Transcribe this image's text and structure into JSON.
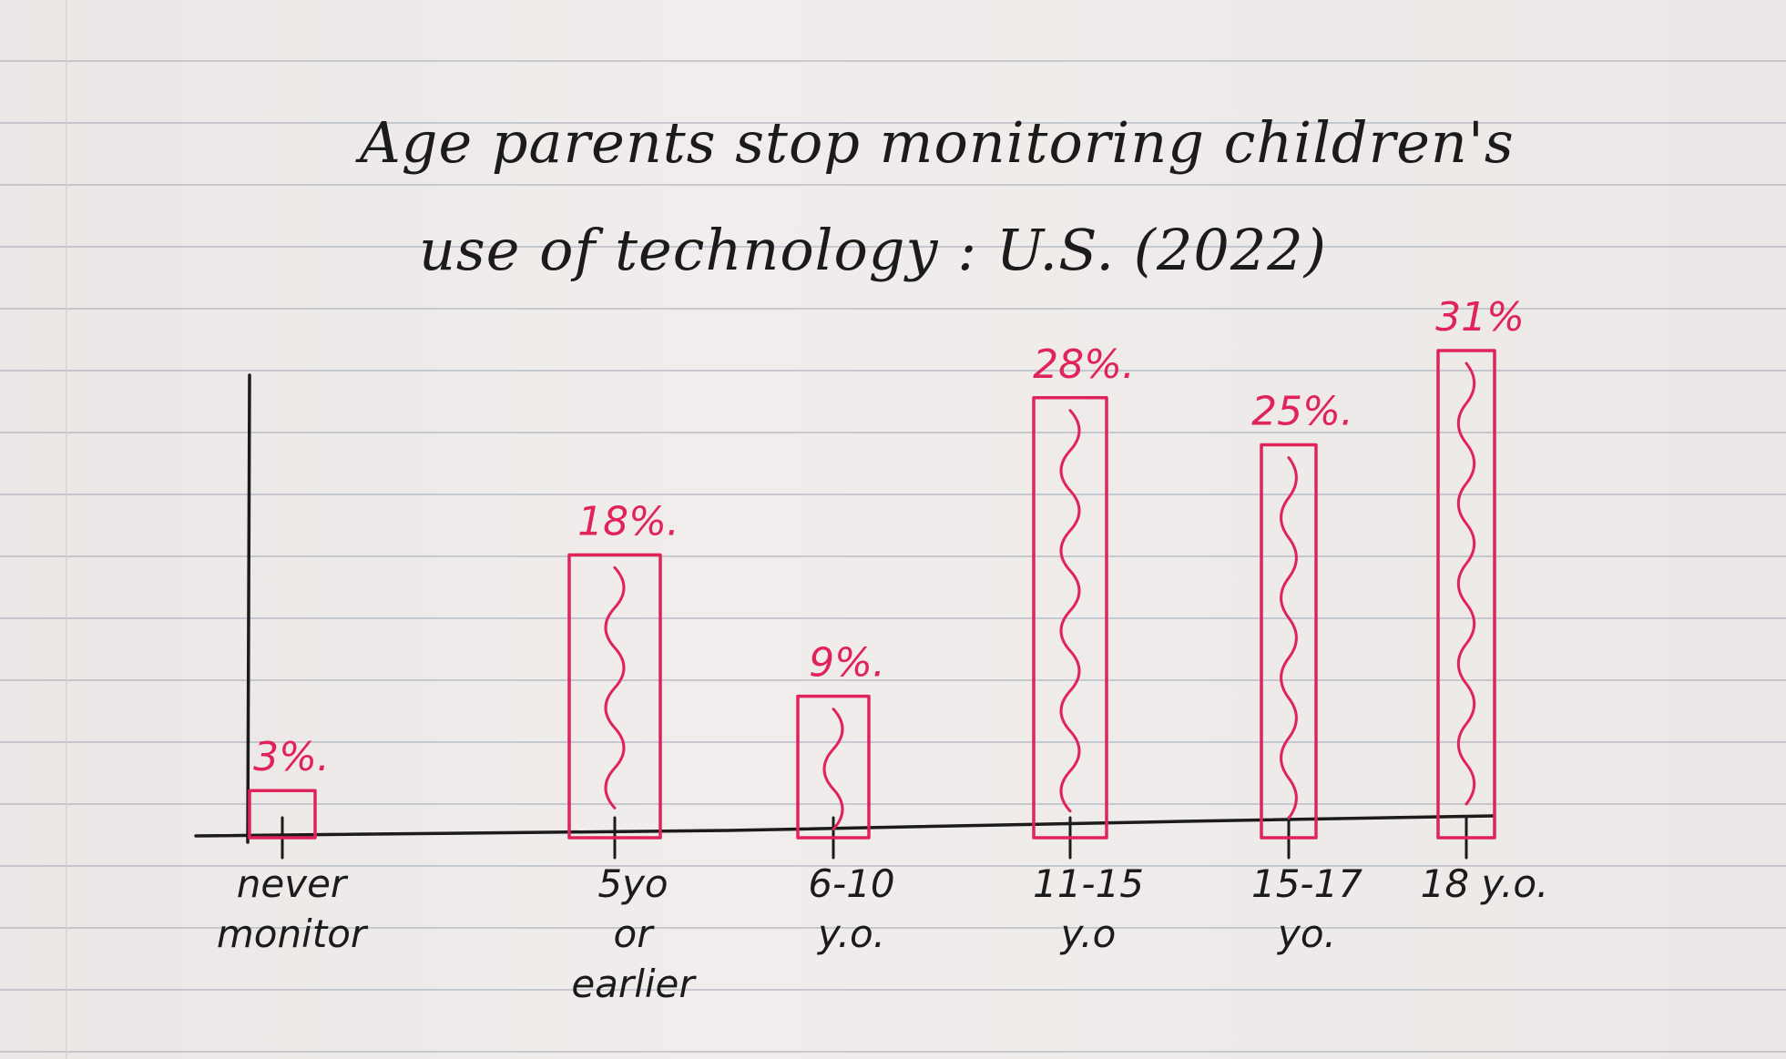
{
  "title_lines": [
    "Age parents stop monitoring children's",
    "use of technology : U.S. (2022)"
  ],
  "colors": {
    "bars": "#e0245a",
    "ink": "#1b1b1b",
    "paper": "#eeeae9"
  },
  "chart_data": {
    "type": "bar",
    "title": "Age parents stop monitoring children's use of technology : U.S. (2022)",
    "categories": [
      [
        "never",
        "monitor"
      ],
      [
        "5yo",
        "or",
        "earlier"
      ],
      [
        "6-10",
        "y.o."
      ],
      [
        "11-15",
        "y.o"
      ],
      [
        "15-17",
        "yo."
      ],
      [
        "18 y.o."
      ]
    ],
    "values": [
      3,
      18,
      9,
      28,
      25,
      31
    ],
    "data_labels": [
      "3%.",
      "18%.",
      "9%.",
      "28%.",
      "25%.",
      "31%"
    ],
    "unit": "%",
    "ylim": [
      0,
      31
    ],
    "xlabel": "",
    "ylabel": "",
    "grid": false
  }
}
